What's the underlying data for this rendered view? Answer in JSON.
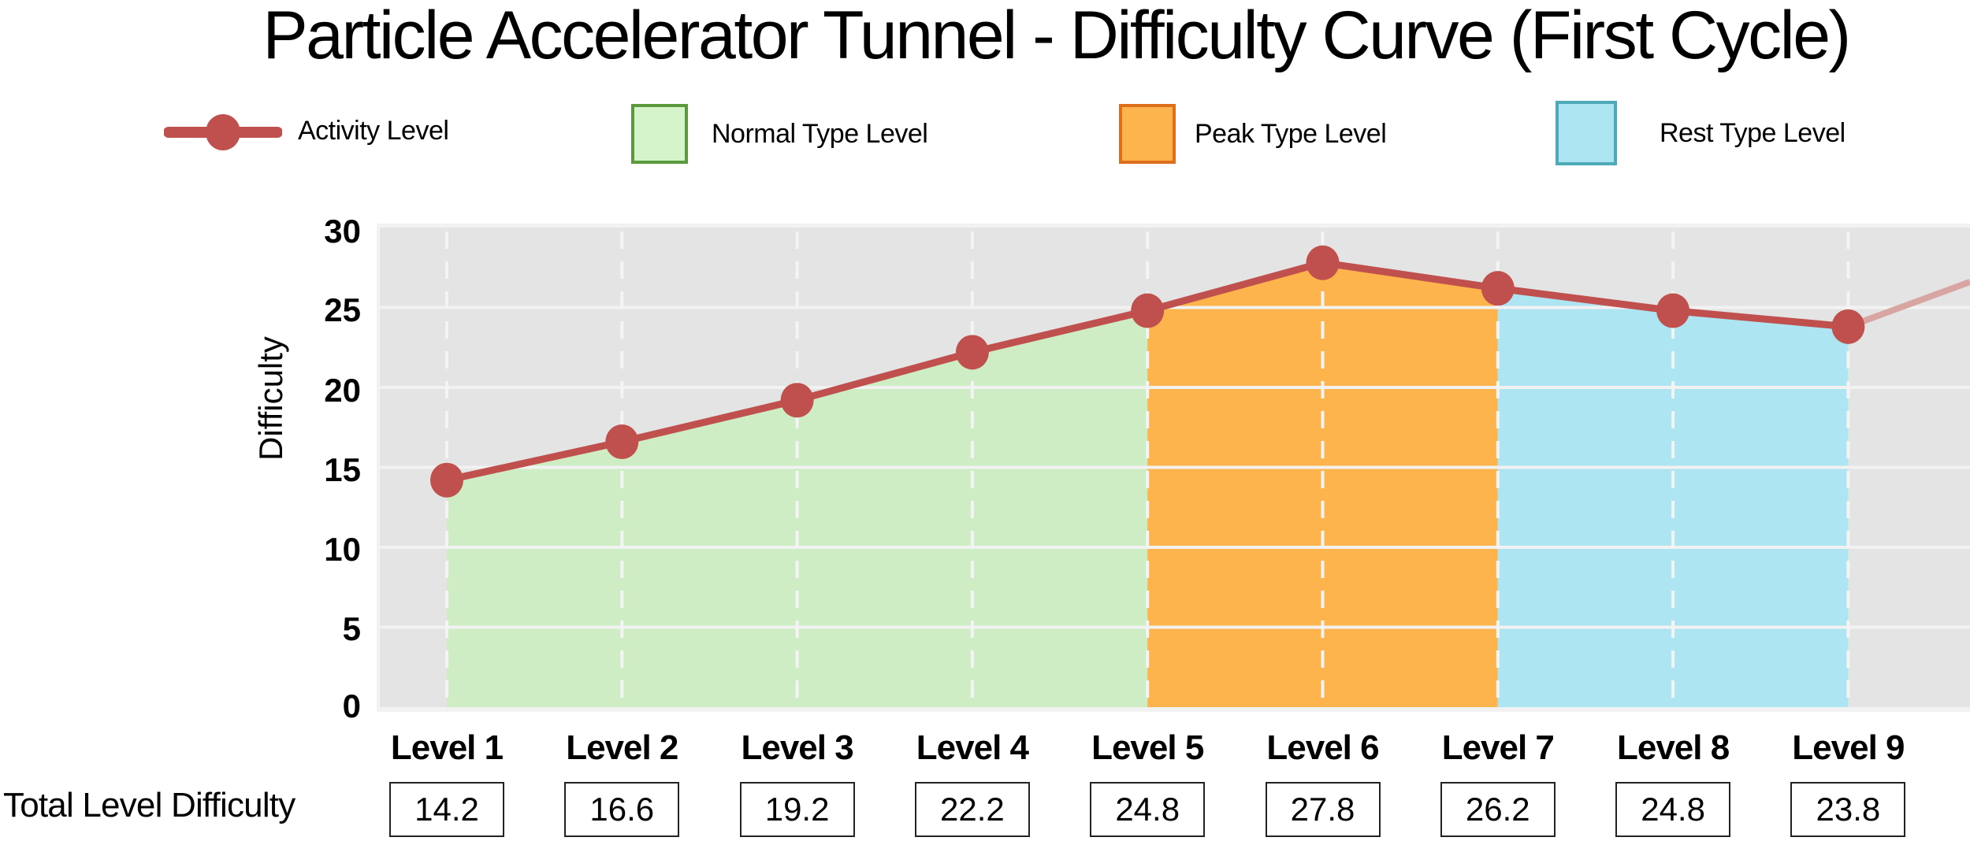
{
  "title": "Particle Accelerator Tunnel - Difficulty Curve (First Cycle)",
  "legend": {
    "items": [
      {
        "label": "Activity Level",
        "type": "line-marker",
        "color": "#c0504d",
        "icon": "line-marker-icon"
      },
      {
        "label": "Normal Type Level",
        "type": "swatch",
        "fill": "#d5f4cc",
        "border": "#5a9a3c"
      },
      {
        "label": "Peak Type Level",
        "type": "swatch",
        "fill": "#fdb44d",
        "border": "#de6e1b"
      },
      {
        "label": "Rest Type Level",
        "type": "swatch",
        "fill": "#ade5f2",
        "border": "#4eaab6"
      }
    ]
  },
  "axes": {
    "ylabel": "Difficulty",
    "yticks": [
      "30",
      "25",
      "20",
      "15",
      "10",
      "5",
      "0"
    ],
    "xticks": [
      "Level 1",
      "Level 2",
      "Level 3",
      "Level 4",
      "Level 5",
      "Level 6",
      "Level 7",
      "Level 8",
      "Level 9"
    ]
  },
  "table": {
    "row_label": "Total Level Difficulty",
    "values": [
      "14.2",
      "16.6",
      "19.2",
      "22.2",
      "24.8",
      "27.8",
      "26.2",
      "24.8",
      "23.8"
    ]
  },
  "colors": {
    "plot_bg": "#e4e4e4",
    "grid": "#f2f2f2",
    "line": "#c0504d",
    "normal_fill": "#ceedc4",
    "peak_fill": "#fdb44d",
    "rest_fill": "#ade5f2"
  },
  "chart_data": {
    "type": "line",
    "title": "Particle Accelerator Tunnel - Difficulty Curve (First Cycle)",
    "xlabel": "",
    "ylabel": "Difficulty",
    "categories": [
      "Level 1",
      "Level 2",
      "Level 3",
      "Level 4",
      "Level 5",
      "Level 6",
      "Level 7",
      "Level 8",
      "Level 9"
    ],
    "series": [
      {
        "name": "Activity Level",
        "values": [
          14.2,
          16.6,
          19.2,
          22.2,
          24.8,
          27.8,
          26.2,
          24.8,
          23.8
        ]
      }
    ],
    "shaded_regions": [
      {
        "name": "Normal Type Level",
        "from": "Level 1",
        "to": "Level 5"
      },
      {
        "name": "Peak Type Level",
        "from": "Level 5",
        "to": "Level 7"
      },
      {
        "name": "Rest Type Level",
        "from": "Level 7",
        "to": "Level 9"
      }
    ],
    "continuation_hint": "faded line continues upward after Level 9",
    "ylim": [
      0,
      30
    ],
    "yticks": [
      0,
      5,
      10,
      15,
      20,
      25,
      30
    ],
    "grid": true,
    "legend_position": "top"
  }
}
